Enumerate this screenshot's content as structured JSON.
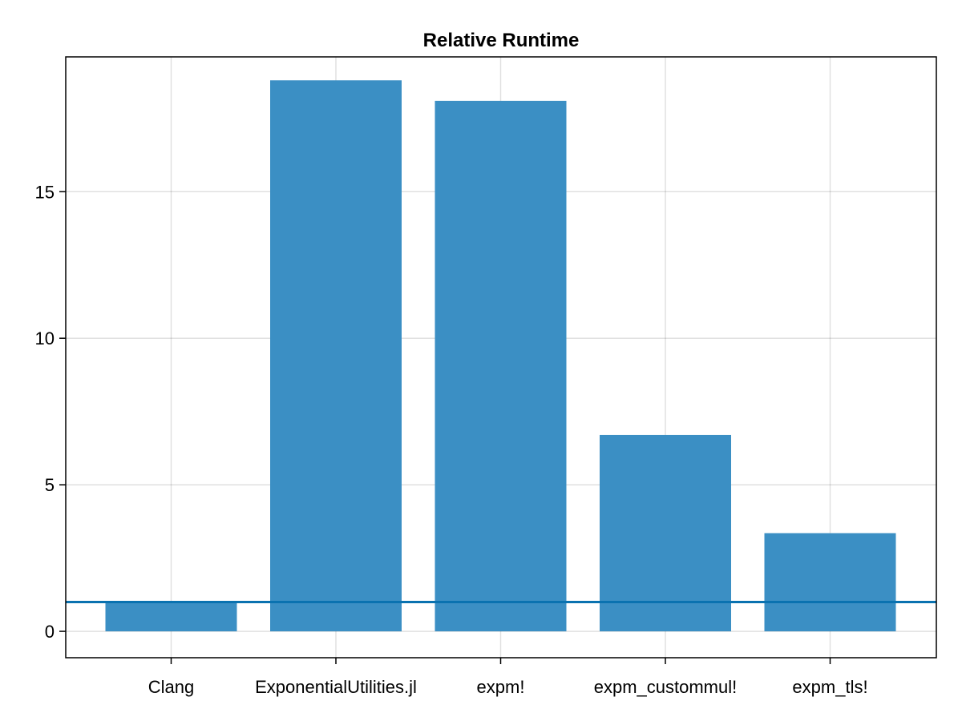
{
  "chart_data": {
    "type": "bar",
    "title": "Relative Runtime",
    "xlabel": "",
    "ylabel": "",
    "categories": [
      "Clang",
      "ExponentialUtilities.jl",
      "expm!",
      "expm_custommul!",
      "expm_tls!"
    ],
    "values": [
      1.0,
      18.8,
      18.1,
      6.7,
      3.35
    ],
    "ylim": [
      -0.9,
      19.6
    ],
    "yticks": [
      0,
      5,
      10,
      15
    ],
    "reference_line": 1.0,
    "grid": true,
    "bar_color": "#3b8fc4",
    "reference_line_color": "#0a72b0"
  }
}
